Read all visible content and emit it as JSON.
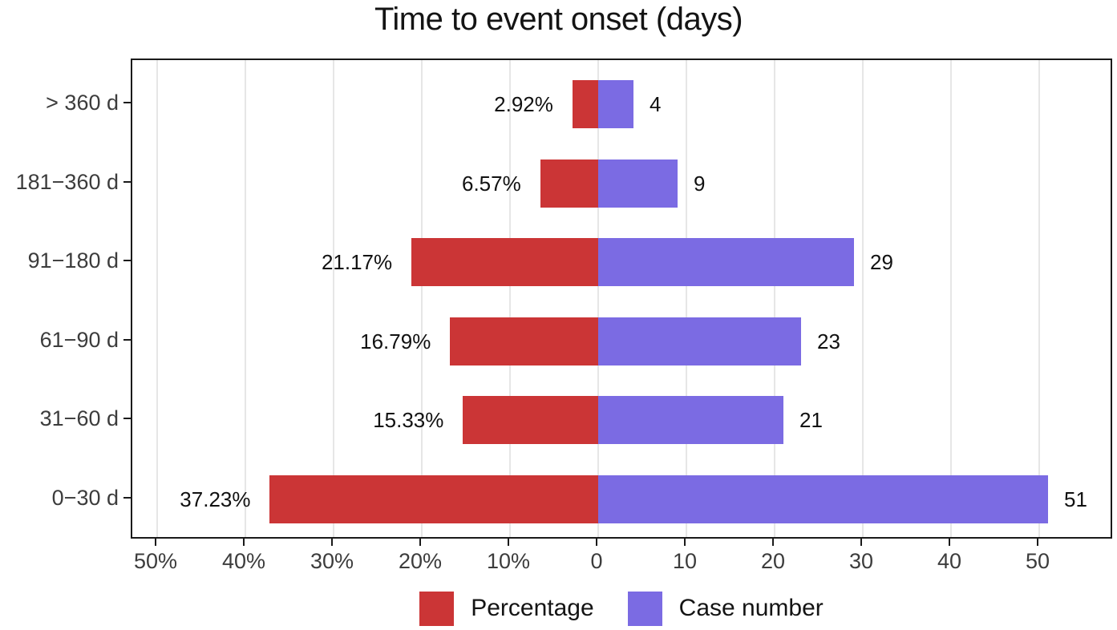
{
  "chart_data": {
    "type": "bar",
    "orientation": "horizontal-diverging",
    "title": "Time to event onset (days)",
    "categories": [
      "> 360 d",
      "181−360 d",
      "91−180 d",
      "61−90 d",
      "31−60 d",
      "0−30 d"
    ],
    "series": [
      {
        "name": "Percentage",
        "side": "left",
        "color": "#cb3536",
        "values": [
          2.92,
          6.57,
          21.17,
          16.79,
          15.33,
          37.23
        ],
        "labels": [
          "2.92%",
          "6.57%",
          "21.17%",
          "16.79%",
          "15.33%",
          "37.23%"
        ]
      },
      {
        "name": "Case number",
        "side": "right",
        "color": "#7b6be3",
        "values": [
          4,
          9,
          29,
          23,
          21,
          51
        ],
        "labels": [
          "4",
          "9",
          "29",
          "23",
          "21",
          "51"
        ]
      }
    ],
    "x_ticks": [
      {
        "label": "50%",
        "value": -50
      },
      {
        "label": "40%",
        "value": -40
      },
      {
        "label": "30%",
        "value": -30
      },
      {
        "label": "20%",
        "value": -20
      },
      {
        "label": "10%",
        "value": -10
      },
      {
        "label": "0",
        "value": 0
      },
      {
        "label": "10",
        "value": 10
      },
      {
        "label": "20",
        "value": 20
      },
      {
        "label": "30",
        "value": 30
      },
      {
        "label": "40",
        "value": 40
      },
      {
        "label": "50",
        "value": 50
      }
    ],
    "xlim": [
      -52.8,
      58.5
    ],
    "grid": "vertical-major-only",
    "legend_position": "bottom-center"
  },
  "styles": {
    "bar_red": "#cb3536",
    "bar_purple": "#7b6be3",
    "gridline": "#e6e6e6",
    "panel_border": "#1a1a1a",
    "axis_text": "#3c3c3c",
    "bar_label_text": "#111111",
    "title_text": "#141414"
  }
}
